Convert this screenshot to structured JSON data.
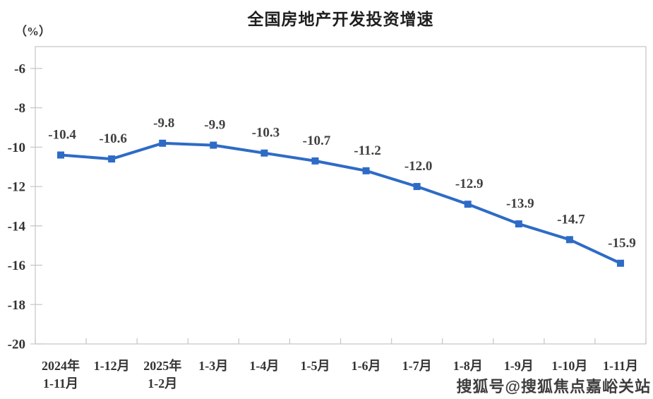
{
  "page": {
    "watermark": "搜狐号@搜狐焦点嘉峪关站"
  },
  "chart_data": {
    "type": "line",
    "title": "全国房地产开发投资增速",
    "ylabel": "（%）",
    "xlabel": "",
    "categories": [
      "2024年\n1-11月",
      "1-12月",
      "2025年\n1-2月",
      "1-3月",
      "1-4月",
      "1-5月",
      "1-6月",
      "1-7月",
      "1-8月",
      "1-9月",
      "1-10月",
      "1-11月"
    ],
    "values": [
      -10.4,
      -10.6,
      -9.8,
      -9.9,
      -10.3,
      -10.7,
      -11.2,
      -12.0,
      -12.9,
      -13.9,
      -14.7,
      -15.9
    ],
    "y_ticks": [
      -6,
      -8,
      -10,
      -12,
      -14,
      -16,
      -18,
      -20
    ],
    "ylim": [
      -20,
      -4.89
    ],
    "grid": false,
    "legend": "none",
    "marker": "square",
    "colors": {
      "line": "#2E6BC6",
      "axis": "#C9C9C9",
      "data_label": "#404040",
      "tick_label": "#333333",
      "title": "#1F1F1F",
      "watermark": "#3D3D3D"
    }
  }
}
